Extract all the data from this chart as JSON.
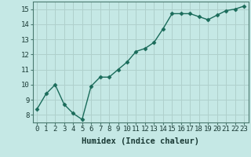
{
  "x": [
    0,
    1,
    2,
    3,
    4,
    5,
    6,
    7,
    8,
    9,
    10,
    11,
    12,
    13,
    14,
    15,
    16,
    17,
    18,
    19,
    20,
    21,
    22,
    23
  ],
  "y": [
    8.4,
    9.4,
    10.0,
    8.7,
    8.1,
    7.7,
    9.9,
    10.5,
    10.5,
    11.0,
    11.5,
    12.2,
    12.4,
    12.8,
    13.7,
    14.7,
    14.7,
    14.7,
    14.5,
    14.3,
    14.6,
    14.9,
    15.0,
    15.2
  ],
  "line_color": "#1a6b5a",
  "marker": "D",
  "marker_size": 2.5,
  "bg_color": "#c5e8e5",
  "grid_color": "#afd0cc",
  "xlabel": "Humidex (Indice chaleur)",
  "xlim": [
    -0.5,
    23.5
  ],
  "ylim": [
    7.5,
    15.5
  ],
  "yticks": [
    8,
    9,
    10,
    11,
    12,
    13,
    14,
    15
  ],
  "xticks": [
    0,
    1,
    2,
    3,
    4,
    5,
    6,
    7,
    8,
    9,
    10,
    11,
    12,
    13,
    14,
    15,
    16,
    17,
    18,
    19,
    20,
    21,
    22,
    23
  ],
  "tick_fontsize": 6.5,
  "label_fontsize": 7.5,
  "spine_color": "#4a7a70"
}
